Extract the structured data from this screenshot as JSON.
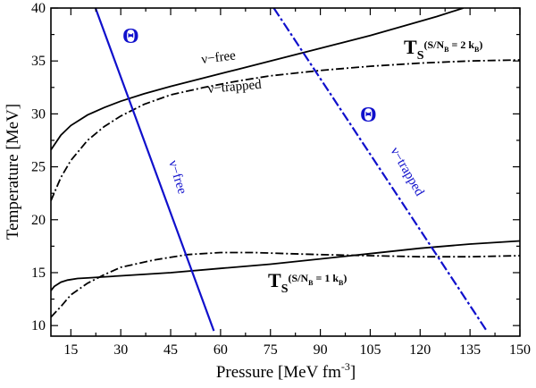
{
  "chart_data": {
    "type": "line",
    "xlabel": "Pressure [MeV fm",
    "xlabel_sup": "-3",
    "xlabel_end": "]",
    "ylabel": "Temperature [MeV]",
    "xlim": [
      9,
      150
    ],
    "ylim": [
      9,
      40
    ],
    "xticks": [
      15,
      30,
      45,
      60,
      75,
      90,
      105,
      120,
      135,
      150
    ],
    "yticks": [
      10,
      15,
      20,
      25,
      30,
      35,
      40
    ],
    "grid": false,
    "series": [
      {
        "key": "ts2_free",
        "color": "#000000",
        "dash": "solid",
        "points": [
          [
            9,
            26.6
          ],
          [
            12,
            28.0
          ],
          [
            15,
            28.9
          ],
          [
            20,
            29.9
          ],
          [
            25,
            30.6
          ],
          [
            30,
            31.2
          ],
          [
            37,
            31.9
          ],
          [
            45,
            32.6
          ],
          [
            55,
            33.4
          ],
          [
            65,
            34.2
          ],
          [
            75,
            35.0
          ],
          [
            85,
            35.8
          ],
          [
            95,
            36.6
          ],
          [
            105,
            37.4
          ],
          [
            115,
            38.3
          ],
          [
            125,
            39.2
          ],
          [
            133,
            40.0
          ]
        ]
      },
      {
        "key": "ts2_trapped",
        "color": "#000000",
        "dash": "dashdot",
        "points": [
          [
            9,
            21.8
          ],
          [
            12,
            24.0
          ],
          [
            15,
            25.6
          ],
          [
            20,
            27.5
          ],
          [
            25,
            28.8
          ],
          [
            30,
            29.8
          ],
          [
            37,
            30.9
          ],
          [
            45,
            31.8
          ],
          [
            55,
            32.5
          ],
          [
            65,
            33.1
          ],
          [
            75,
            33.6
          ],
          [
            90,
            34.1
          ],
          [
            105,
            34.5
          ],
          [
            120,
            34.8
          ],
          [
            135,
            35.0
          ],
          [
            150,
            35.1
          ]
        ]
      },
      {
        "key": "ts1_free",
        "color": "#000000",
        "dash": "solid",
        "points": [
          [
            9,
            13.3
          ],
          [
            10,
            13.7
          ],
          [
            12,
            14.1
          ],
          [
            14,
            14.3
          ],
          [
            17,
            14.45
          ],
          [
            20,
            14.5
          ],
          [
            30,
            14.7
          ],
          [
            45,
            15.0
          ],
          [
            60,
            15.4
          ],
          [
            75,
            15.8
          ],
          [
            90,
            16.3
          ],
          [
            105,
            16.8
          ],
          [
            120,
            17.3
          ],
          [
            135,
            17.7
          ],
          [
            150,
            18.0
          ]
        ]
      },
      {
        "key": "ts1_trapped",
        "color": "#000000",
        "dash": "dashdot",
        "points": [
          [
            9,
            10.8
          ],
          [
            12,
            11.8
          ],
          [
            15,
            12.9
          ],
          [
            20,
            14.0
          ],
          [
            25,
            14.8
          ],
          [
            30,
            15.5
          ],
          [
            40,
            16.2
          ],
          [
            50,
            16.7
          ],
          [
            60,
            16.9
          ],
          [
            70,
            16.9
          ],
          [
            80,
            16.8
          ],
          [
            90,
            16.7
          ],
          [
            105,
            16.6
          ],
          [
            120,
            16.5
          ],
          [
            135,
            16.5
          ],
          [
            150,
            16.6
          ]
        ]
      },
      {
        "key": "theta_free",
        "color": "#1010cc",
        "dash": "solid",
        "points": [
          [
            22.4,
            40.0
          ],
          [
            58.0,
            9.5
          ]
        ]
      },
      {
        "key": "theta_trapped",
        "color": "#1010cc",
        "dash": "dashed",
        "points": [
          [
            76.0,
            40.0
          ],
          [
            140.0,
            9.5
          ]
        ]
      }
    ],
    "annotations": {
      "ts2_label": "T",
      "ts2_sub": "S",
      "ts2_cond": "(S/N",
      "ts2_cond_sub": "B",
      "ts2_cond_end": " = 2 k",
      "ts2_cond_k_sub": "B",
      "ts2_cond_close": ")",
      "ts1_label": "T",
      "ts1_sub": "S",
      "ts1_cond": "(S/N",
      "ts1_cond_sub": "B",
      "ts1_cond_end": " = 1 k",
      "ts1_cond_k_sub": "B",
      "ts1_cond_close": ")",
      "nu_free_black": "ν−free",
      "nu_trapped_black": "ν−trapped",
      "theta_left": "Θ",
      "theta_right": "Θ",
      "nu_free_blue": "ν−free",
      "nu_trapped_blue": "ν−trapped"
    }
  }
}
